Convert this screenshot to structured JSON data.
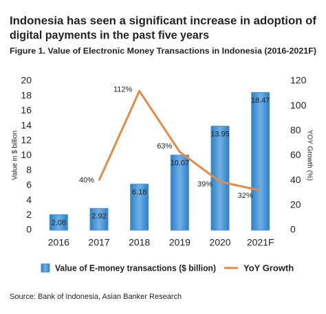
{
  "chart_data": {
    "type": "bar_line",
    "title": [
      "Indonesia has seen a significant increase in adoption of",
      "digital payments in the past five years"
    ],
    "subtitle": "Figure 1. Value of Electronic Money Transactions in Indonesia (2016-2021F)",
    "categories": [
      "2016",
      "2017",
      "2018",
      "2019",
      "2020",
      "2021F"
    ],
    "series": [
      {
        "name": "Value of E-money transactions ($ billion)",
        "type": "bar",
        "color": "#3f8fd2",
        "values": [
          2.08,
          2.92,
          6.18,
          10.07,
          13.95,
          18.47
        ]
      },
      {
        "name": "YoY Growth",
        "type": "line",
        "axis": "y2",
        "color": "#e58a43",
        "values": [
          null,
          40,
          112,
          63,
          39,
          32
        ],
        "value_labels": [
          null,
          "40%",
          "112%",
          "63%",
          "39%",
          "32%"
        ]
      }
    ],
    "ylabel": "Value in $ billion",
    "y2label": "YOY Growth (%)",
    "ylim": [
      0,
      20
    ],
    "yticks": [
      0,
      2,
      4,
      6,
      8,
      10,
      12,
      14,
      16,
      18,
      20
    ],
    "y2lim": [
      0,
      120
    ],
    "y2ticks": [
      0,
      20,
      40,
      60,
      80,
      100,
      120
    ],
    "legend": "bottom",
    "source": "Source: Bank of Indonesia, Asian Banker Research"
  }
}
